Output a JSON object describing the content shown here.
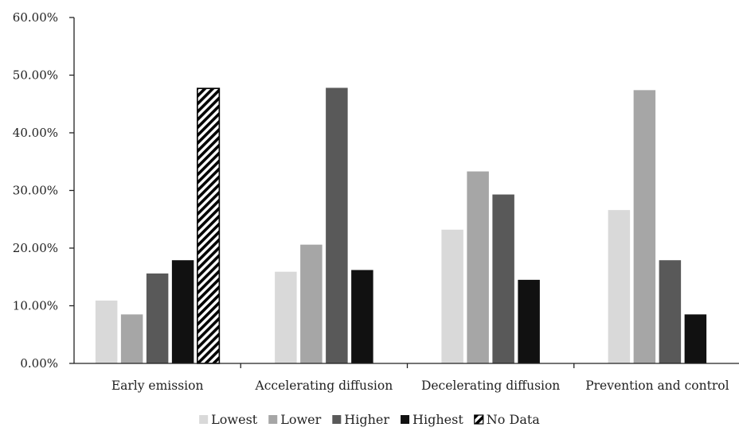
{
  "chart_data": {
    "type": "bar",
    "categories": [
      "Early emission",
      "Accelerating diffusion",
      "Decelerating diffusion",
      "Prevention and control"
    ],
    "series": [
      {
        "name": "Lowest",
        "color": "#d9d9d9",
        "values": [
          10.9,
          15.9,
          23.2,
          26.6
        ]
      },
      {
        "name": "Lower",
        "color": "#a6a6a6",
        "values": [
          8.5,
          20.6,
          33.3,
          47.4
        ]
      },
      {
        "name": "Higher",
        "color": "#595959",
        "values": [
          15.6,
          47.8,
          29.3,
          17.9
        ]
      },
      {
        "name": "Highest",
        "color": "#111111",
        "values": [
          17.9,
          16.2,
          14.5,
          8.5
        ]
      },
      {
        "name": "No Data",
        "color": "hatched",
        "values": [
          47.7,
          null,
          null,
          null
        ]
      }
    ],
    "y_ticks": [
      "0.00%",
      "10.00%",
      "20.00%",
      "30.00%",
      "40.00%",
      "50.00%",
      "60.00%"
    ],
    "ylim": [
      0,
      60
    ],
    "grid": false,
    "legend_position": "bottom"
  }
}
